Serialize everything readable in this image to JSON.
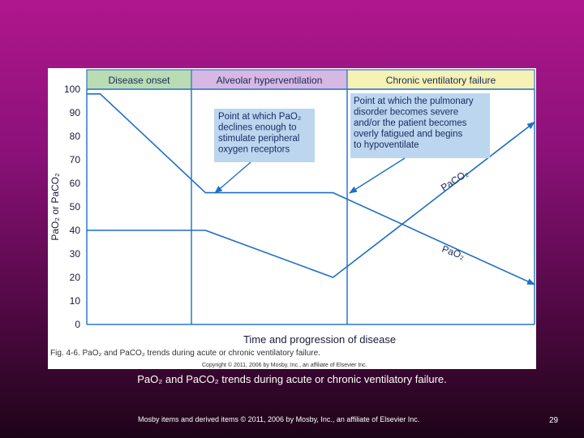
{
  "chart_data": {
    "type": "line",
    "ylabel": "PaO₂ or PaCO₂",
    "xlabel": "Time and progression of disease",
    "ylim": [
      0,
      100
    ],
    "yticks": [
      0,
      10,
      20,
      30,
      40,
      50,
      60,
      70,
      80,
      90,
      100
    ],
    "phases": [
      {
        "label": "Disease onset",
        "color": "#b9dcb2"
      },
      {
        "label": "Alveolar hyperventilation",
        "color": "#d6b8e2"
      },
      {
        "label": "Chronic ventilatory failure",
        "color": "#f6f1b4"
      }
    ],
    "series": [
      {
        "name": "PaO₂",
        "x": [
          0,
          0.6,
          5.3,
          11.0,
          20.0
        ],
        "values": [
          98,
          98,
          56,
          56,
          17
        ]
      },
      {
        "name": "PaCO₂",
        "x": [
          0,
          5.3,
          11.0,
          20.0
        ],
        "values": [
          40,
          40,
          20,
          86
        ]
      }
    ],
    "annotations": [
      {
        "lines": [
          "Point at which PaO₂",
          "declines enough to",
          "stimulate peripheral",
          "oxygen receptors"
        ]
      },
      {
        "lines": [
          "Point at which the pulmonary",
          "disorder becomes severe",
          "and/or the patient becomes",
          "overly fatigued and begins",
          "to hypoventilate"
        ]
      }
    ],
    "figure_caption": "Fig. 4-6. PaO₂ and PaCO₂ trends during acute or chronic ventilatory failure.",
    "figure_copyright": "Copyright © 2011, 2006 by Mosby, Inc., an affiliate of Elsevier Inc."
  },
  "slide": {
    "caption": "PaO₂ and PaCO₂ trends during acute or chronic ventilatory failure.",
    "copyright": "Mosby items and derived items © 2011, 2006 by Mosby, Inc., an affiliate of Elsevier Inc.",
    "page_number": "29"
  },
  "colors": {
    "line": "#1f6fc4",
    "axis": "#2a78c8",
    "callout_bg": "#bcd6f0"
  }
}
